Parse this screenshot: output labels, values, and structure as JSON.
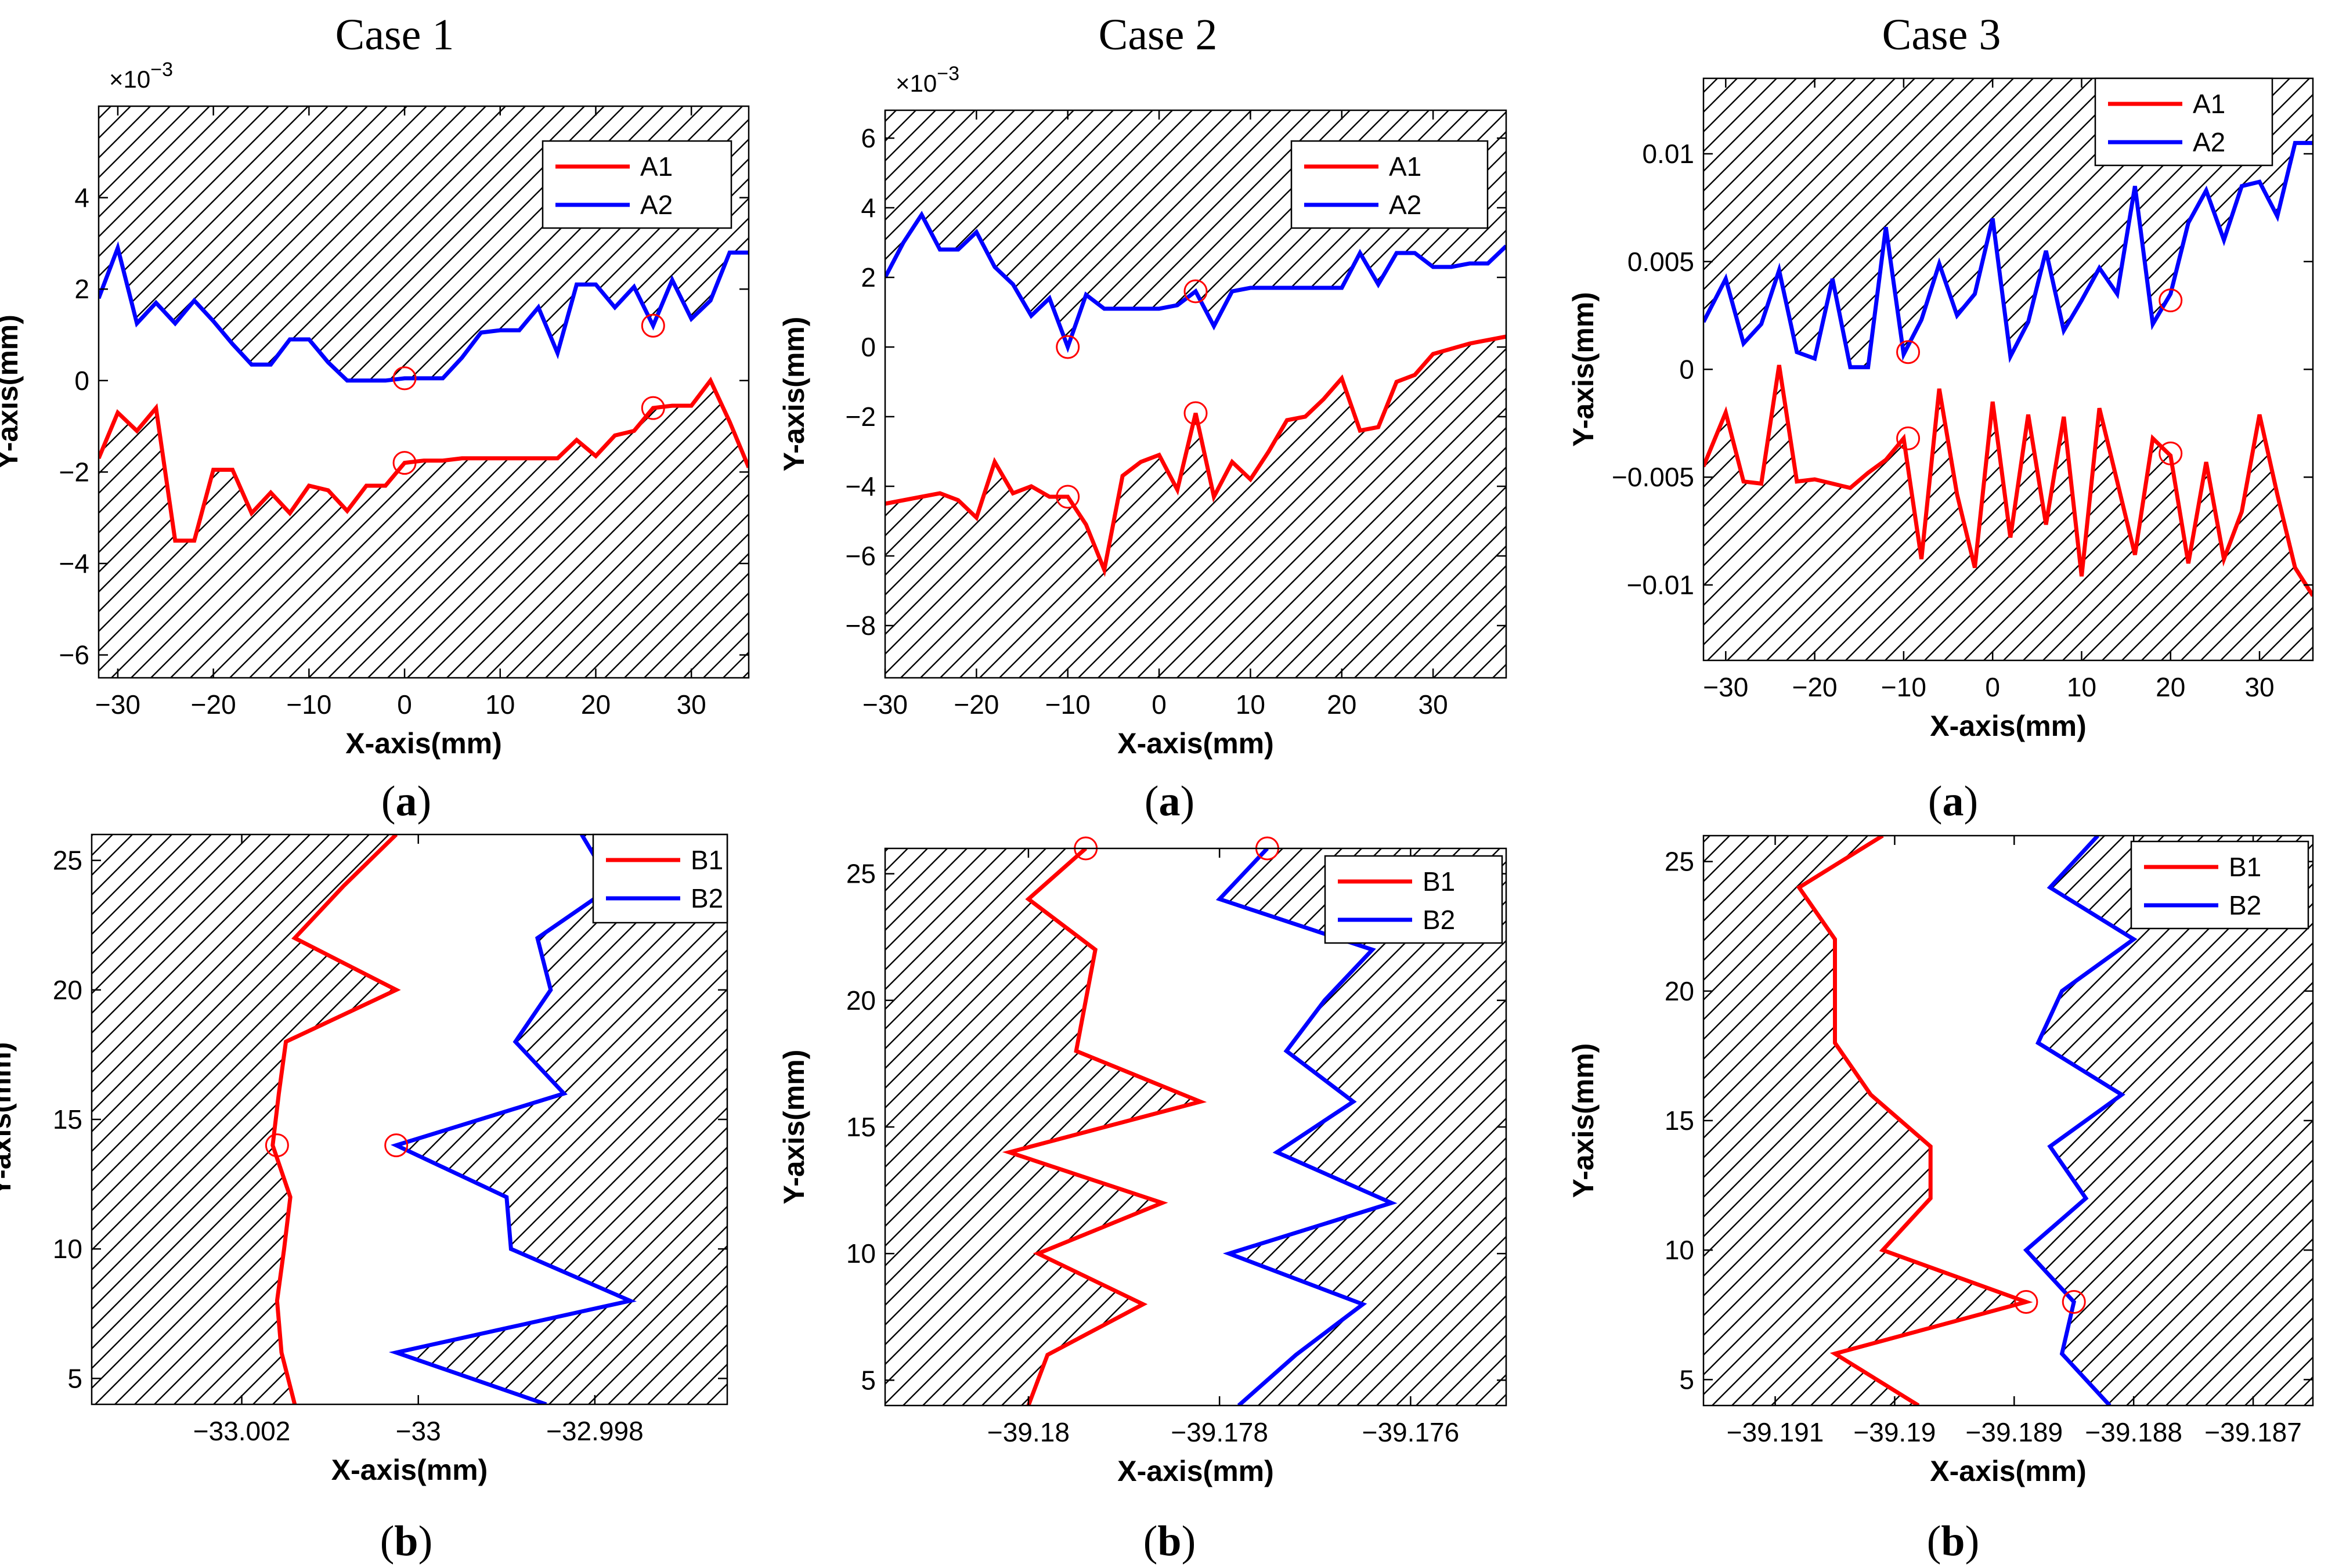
{
  "figure": {
    "case_titles": [
      "Case 1",
      "Case 2",
      "Case 3"
    ],
    "panel_label_a": "a",
    "panel_label_b": "b",
    "colors": {
      "red": "#ff0000",
      "blue": "#0000ff",
      "hatch": "#000000",
      "marker": "#ff0000"
    }
  },
  "chart_data": [
    {
      "id": "case1-a",
      "type": "line",
      "xlabel": "X-axis(mm)",
      "ylabel": "Y-axis(mm)",
      "xlim": [
        -32,
        36
      ],
      "ylim": [
        -6.5,
        6.0
      ],
      "xticks": [
        -30,
        -20,
        -10,
        0,
        10,
        20,
        30
      ],
      "xtick_labels": [
        "−30",
        "−20",
        "−10",
        "0",
        "10",
        "20",
        "30"
      ],
      "yticks": [
        -6,
        -4,
        -2,
        0,
        2,
        4
      ],
      "ytick_labels": [
        "−6",
        "−4",
        "−2",
        "0",
        "2",
        "4"
      ],
      "exponent_label": "×10",
      "exponent_power": "−3",
      "hatch": "outer-horizontal",
      "legend": [
        "A1",
        "A2"
      ],
      "series": [
        {
          "name": "A1",
          "color": "#ff0000",
          "x": [
            -32,
            -30,
            -28,
            -26,
            -24,
            -22,
            -20,
            -18,
            -16,
            -14,
            -12,
            -10,
            -8,
            -6,
            -4,
            -2,
            0,
            2,
            4,
            6,
            8,
            10,
            12,
            14,
            16,
            18,
            20,
            22,
            24,
            26,
            28,
            30,
            32,
            34,
            36
          ],
          "y": [
            -1.7,
            -0.7,
            -1.1,
            -0.6,
            -3.5,
            -3.5,
            -1.95,
            -1.95,
            -2.9,
            -2.45,
            -2.9,
            -2.3,
            -2.4,
            -2.85,
            -2.3,
            -2.3,
            -1.8,
            -1.75,
            -1.75,
            -1.7,
            -1.7,
            -1.7,
            -1.7,
            -1.7,
            -1.7,
            -1.3,
            -1.65,
            -1.2,
            -1.1,
            -0.6,
            -0.55,
            -0.55,
            0.0,
            -0.9,
            -1.9
          ]
        },
        {
          "name": "A2",
          "color": "#0000ff",
          "x": [
            -32,
            -30,
            -28,
            -26,
            -24,
            -22,
            -20,
            -18,
            -16,
            -14,
            -12,
            -10,
            -8,
            -6,
            -4,
            -2,
            0,
            2,
            4,
            6,
            8,
            10,
            12,
            14,
            16,
            18,
            20,
            22,
            24,
            26,
            28,
            30,
            32,
            34,
            36
          ],
          "y": [
            1.8,
            2.9,
            1.25,
            1.7,
            1.25,
            1.75,
            1.3,
            0.8,
            0.35,
            0.35,
            0.9,
            0.9,
            0.4,
            0.0,
            0.0,
            0.0,
            0.05,
            0.05,
            0.05,
            0.5,
            1.05,
            1.1,
            1.1,
            1.6,
            0.6,
            2.1,
            2.1,
            1.6,
            2.05,
            1.2,
            2.2,
            1.35,
            1.75,
            2.8,
            2.8
          ]
        }
      ],
      "markers": [
        [
          0,
          0.05
        ],
        [
          0,
          -1.8
        ],
        [
          26,
          1.2
        ],
        [
          26,
          -0.6
        ]
      ]
    },
    {
      "id": "case2-a",
      "type": "line",
      "xlabel": "X-axis(mm)",
      "ylabel": "Y-axis(mm)",
      "xlim": [
        -30,
        38
      ],
      "ylim": [
        -9.5,
        6.8
      ],
      "xticks": [
        -30,
        -20,
        -10,
        0,
        10,
        20,
        30
      ],
      "xtick_labels": [
        "−30",
        "−20",
        "−10",
        "0",
        "10",
        "20",
        "30"
      ],
      "yticks": [
        -8,
        -6,
        -4,
        -2,
        0,
        2,
        4,
        6
      ],
      "ytick_labels": [
        "−8",
        "−6",
        "−4",
        "−2",
        "0",
        "2",
        "4",
        "6"
      ],
      "exponent_label": "×10",
      "exponent_power": "−3",
      "hatch": "outer-horizontal",
      "legend": [
        "A1",
        "A2"
      ],
      "series": [
        {
          "name": "A1",
          "color": "#ff0000",
          "x": [
            -30,
            -28,
            -26,
            -24,
            -22,
            -20,
            -18,
            -16,
            -14,
            -12,
            -10,
            -8,
            -6,
            -4,
            -2,
            0,
            2,
            4,
            6,
            8,
            10,
            12,
            14,
            16,
            18,
            20,
            22,
            24,
            26,
            28,
            30,
            32,
            34,
            36,
            38
          ],
          "y": [
            -4.5,
            -4.4,
            -4.3,
            -4.2,
            -4.4,
            -4.9,
            -3.3,
            -4.2,
            -4.0,
            -4.3,
            -4.3,
            -5.1,
            -6.4,
            -3.7,
            -3.3,
            -3.1,
            -4.1,
            -1.9,
            -4.3,
            -3.3,
            -3.8,
            -3.0,
            -2.1,
            -2.0,
            -1.5,
            -0.9,
            -2.4,
            -2.3,
            -1.0,
            -0.8,
            -0.2,
            -0.05,
            0.1,
            0.2,
            0.3
          ]
        },
        {
          "name": "A2",
          "color": "#0000ff",
          "x": [
            -30,
            -28,
            -26,
            -24,
            -22,
            -20,
            -18,
            -16,
            -14,
            -12,
            -10,
            -8,
            -6,
            -4,
            -2,
            0,
            2,
            4,
            6,
            8,
            10,
            12,
            14,
            16,
            18,
            20,
            22,
            24,
            26,
            28,
            30,
            32,
            34,
            36,
            38
          ],
          "y": [
            2.0,
            3.0,
            3.8,
            2.8,
            2.8,
            3.3,
            2.3,
            1.8,
            0.9,
            1.4,
            0.0,
            1.5,
            1.1,
            1.1,
            1.1,
            1.1,
            1.2,
            1.6,
            0.6,
            1.6,
            1.7,
            1.7,
            1.7,
            1.7,
            1.7,
            1.7,
            2.7,
            1.8,
            2.7,
            2.7,
            2.3,
            2.3,
            2.4,
            2.4,
            2.9
          ]
        }
      ],
      "markers": [
        [
          -10,
          0.0
        ],
        [
          -10,
          -4.3
        ],
        [
          4,
          1.6
        ],
        [
          4,
          -1.9
        ]
      ]
    },
    {
      "id": "case3-a",
      "type": "line",
      "xlabel": "X-axis(mm)",
      "ylabel": "Y-axis(mm)",
      "xlim": [
        -32.5,
        36
      ],
      "ylim": [
        -0.0135,
        0.0135
      ],
      "xticks": [
        -30,
        -20,
        -10,
        0,
        10,
        20,
        30
      ],
      "xtick_labels": [
        "−30",
        "−20",
        "−10",
        "0",
        "10",
        "20",
        "30"
      ],
      "yticks": [
        -0.01,
        -0.005,
        0,
        0.005,
        0.01
      ],
      "ytick_labels": [
        "−0.01",
        "−0.005",
        "0",
        "0.005",
        "0.01"
      ],
      "hatch": "outer-horizontal",
      "legend": [
        "A1",
        "A2"
      ],
      "series": [
        {
          "name": "A1",
          "color": "#ff0000",
          "x": [
            -32.5,
            -30,
            -28,
            -26,
            -24,
            -22,
            -20,
            -18,
            -16,
            -14,
            -12,
            -10,
            -8,
            -6,
            -4,
            -2,
            0,
            2,
            4,
            6,
            8,
            10,
            12,
            14,
            16,
            18,
            20,
            22,
            24,
            26,
            28,
            30,
            32,
            34,
            36
          ],
          "y": [
            -0.0045,
            -0.002,
            -0.0052,
            -0.0053,
            0.0002,
            -0.0052,
            -0.0051,
            -0.0053,
            -0.0055,
            -0.0048,
            -0.0042,
            -0.0032,
            -0.0088,
            -0.0009,
            -0.0058,
            -0.0092,
            -0.0015,
            -0.0078,
            -0.0021,
            -0.0072,
            -0.0022,
            -0.0096,
            -0.0018,
            -0.0052,
            -0.0086,
            -0.0032,
            -0.004,
            -0.009,
            -0.0043,
            -0.0088,
            -0.0066,
            -0.0021,
            -0.0058,
            -0.0092,
            -0.0105
          ]
        },
        {
          "name": "A2",
          "color": "#0000ff",
          "x": [
            -32.5,
            -30,
            -28,
            -26,
            -24,
            -22,
            -20,
            -18,
            -16,
            -14,
            -12,
            -10,
            -8,
            -6,
            -4,
            -2,
            0,
            2,
            4,
            6,
            8,
            10,
            12,
            14,
            16,
            18,
            20,
            22,
            24,
            26,
            28,
            30,
            32,
            34,
            36
          ],
          "y": [
            0.0022,
            0.0042,
            0.0012,
            0.0021,
            0.0046,
            0.0008,
            0.0005,
            0.0042,
            0.0001,
            0.0001,
            0.0066,
            0.0007,
            0.0023,
            0.0049,
            0.0025,
            0.0035,
            0.007,
            0.0006,
            0.0022,
            0.0055,
            0.0018,
            0.0032,
            0.0047,
            0.0035,
            0.0085,
            0.0021,
            0.0035,
            0.0068,
            0.0083,
            0.006,
            0.0085,
            0.0087,
            0.0071,
            0.0105,
            0.0105
          ]
        }
      ],
      "markers": [
        [
          -9.5,
          0.0008
        ],
        [
          -9.5,
          -0.0032
        ],
        [
          20,
          0.0032
        ],
        [
          20,
          -0.0039
        ]
      ]
    },
    {
      "id": "case1-b",
      "type": "line",
      "xlabel": "X-axis(mm)",
      "ylabel": "Y-axis(mm)",
      "xlim": [
        -33.0037,
        -32.9965
      ],
      "ylim": [
        4,
        26
      ],
      "xticks": [
        -33.002,
        -33.0,
        -32.998
      ],
      "xtick_labels": [
        "−33.002",
        "−33",
        "−32.998"
      ],
      "yticks": [
        5,
        10,
        15,
        20,
        25
      ],
      "ytick_labels": [
        "5",
        "10",
        "15",
        "20",
        "25"
      ],
      "hatch": "outer-vertical",
      "legend": [
        "B1",
        "B2"
      ],
      "series": [
        {
          "name": "B1",
          "color": "#ff0000",
          "y": [
            4,
            6,
            8,
            10,
            12,
            14,
            16,
            18,
            20,
            22,
            24,
            26
          ],
          "x": [
            -33.0014,
            -33.00155,
            -33.0016,
            -33.00152,
            -33.00145,
            -33.00165,
            -33.00158,
            -33.0015,
            -33.00025,
            -33.0014,
            -33.00085,
            -33.00025
          ]
        },
        {
          "name": "B2",
          "color": "#0000ff",
          "y": [
            4,
            6,
            8,
            10,
            12,
            14,
            16,
            18,
            20,
            22,
            24,
            26
          ],
          "x": [
            -32.99855,
            -33.00025,
            -32.9976,
            -32.99895,
            -32.999,
            -33.00025,
            -32.99835,
            -32.9989,
            -32.9985,
            -32.99865,
            -32.9978,
            -32.99815
          ]
        }
      ],
      "markers": [
        [
          -33.0016,
          14
        ],
        [
          -33.00025,
          14
        ]
      ]
    },
    {
      "id": "case2-b",
      "type": "line",
      "xlabel": "X-axis(mm)",
      "ylabel": "Y-axis(mm)",
      "xlim": [
        -39.1815,
        -39.175
      ],
      "ylim": [
        4,
        26
      ],
      "xticks": [
        -39.18,
        -39.178,
        -39.176
      ],
      "xtick_labels": [
        "−39.18",
        "−39.178",
        "−39.176"
      ],
      "yticks": [
        5,
        10,
        15,
        20,
        25
      ],
      "ytick_labels": [
        "5",
        "10",
        "15",
        "20",
        "25"
      ],
      "hatch": "outer-vertical",
      "legend": [
        "B1",
        "B2"
      ],
      "series": [
        {
          "name": "B1",
          "color": "#ff0000",
          "y": [
            4,
            6,
            8,
            10,
            12,
            14,
            16,
            18,
            20,
            22,
            24,
            26
          ],
          "x": [
            -39.18,
            -39.1798,
            -39.1788,
            -39.1799,
            -39.1786,
            -39.1802,
            -39.1782,
            -39.1795,
            -39.1794,
            -39.1793,
            -39.18,
            -39.1794
          ]
        },
        {
          "name": "B2",
          "color": "#0000ff",
          "y": [
            4,
            6,
            8,
            10,
            12,
            14,
            16,
            18,
            20,
            22,
            24,
            26
          ],
          "x": [
            -39.1778,
            -39.1772,
            -39.1765,
            -39.1779,
            -39.1762,
            -39.1774,
            -39.1766,
            -39.1773,
            -39.1769,
            -39.1764,
            -39.178,
            -39.1775
          ]
        }
      ],
      "markers": [
        [
          -39.1794,
          26
        ],
        [
          -39.1775,
          26
        ]
      ]
    },
    {
      "id": "case3-b",
      "type": "line",
      "xlabel": "X-axis(mm)",
      "ylabel": "Y-axis(mm)",
      "xlim": [
        -39.1916,
        -39.1865
      ],
      "ylim": [
        4,
        26
      ],
      "xticks": [
        -39.191,
        -39.19,
        -39.189,
        -39.188,
        -39.187
      ],
      "xtick_labels": [
        "−39.191",
        "−39.19",
        "−39.189",
        "−39.188",
        "−39.187"
      ],
      "yticks": [
        5,
        10,
        15,
        20,
        25
      ],
      "ytick_labels": [
        "5",
        "10",
        "15",
        "20",
        "25"
      ],
      "hatch": "outer-vertical",
      "legend": [
        "B1",
        "B2"
      ],
      "series": [
        {
          "name": "B1",
          "color": "#ff0000",
          "y": [
            4,
            6,
            8,
            10,
            12,
            14,
            16,
            18,
            20,
            22,
            24,
            26
          ],
          "x": [
            -39.1898,
            -39.1905,
            -39.1889,
            -39.1901,
            -39.1897,
            -39.1897,
            -39.1902,
            -39.1905,
            -39.1905,
            -39.1905,
            -39.1908,
            -39.1901
          ]
        },
        {
          "name": "B2",
          "color": "#0000ff",
          "y": [
            4,
            6,
            8,
            10,
            12,
            14,
            16,
            18,
            20,
            22,
            24,
            26
          ],
          "x": [
            -39.1882,
            -39.1886,
            -39.1885,
            -39.1889,
            -39.1884,
            -39.1887,
            -39.1881,
            -39.1888,
            -39.1886,
            -39.188,
            -39.1887,
            -39.1883
          ]
        }
      ],
      "markers": [
        [
          -39.1889,
          8
        ],
        [
          -39.1885,
          8
        ]
      ]
    }
  ]
}
